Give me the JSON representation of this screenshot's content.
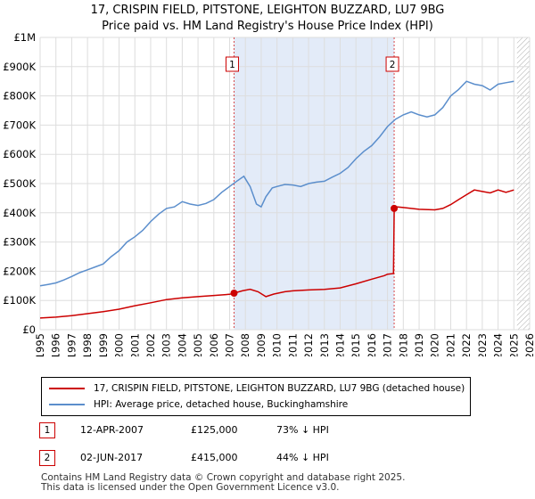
{
  "title_line1": "17, CRISPIN FIELD, PITSTONE, LEIGHTON BUZZARD, LU7 9BG",
  "title_line2": "Price paid vs. HM Land Registry's House Price Index (HPI)",
  "colors": {
    "property": "#cc0000",
    "hpi": "#5b8ecc",
    "shade": "#e3ebf8",
    "grid": "#dddddd",
    "hatch": "#aaaaaa"
  },
  "chart_data": {
    "type": "line",
    "title": "17, CRISPIN FIELD, PITSTONE, LEIGHTON BUZZARD, LU7 9BG",
    "subtitle": "Price paid vs. HM Land Registry's House Price Index (HPI)",
    "xlim": [
      1995,
      2026
    ],
    "ylim": [
      0,
      1000000
    ],
    "x_ticks": [
      "1995",
      "1996",
      "1997",
      "1998",
      "1999",
      "2000",
      "2001",
      "2002",
      "2003",
      "2004",
      "2005",
      "2006",
      "2007",
      "2008",
      "2009",
      "2010",
      "2011",
      "2012",
      "2013",
      "2014",
      "2015",
      "2016",
      "2017",
      "2018",
      "2019",
      "2020",
      "2021",
      "2022",
      "2023",
      "2024",
      "2025",
      "2026"
    ],
    "y_ticks": [
      {
        "value": 0,
        "label": "£0"
      },
      {
        "value": 100000,
        "label": "£100K"
      },
      {
        "value": 200000,
        "label": "£200K"
      },
      {
        "value": 300000,
        "label": "£300K"
      },
      {
        "value": 400000,
        "label": "£400K"
      },
      {
        "value": 500000,
        "label": "£500K"
      },
      {
        "value": 600000,
        "label": "£600K"
      },
      {
        "value": 700000,
        "label": "£700K"
      },
      {
        "value": 800000,
        "label": "£800K"
      },
      {
        "value": 900000,
        "label": "£900K"
      },
      {
        "value": 1000000,
        "label": "£1M"
      }
    ],
    "shaded_range": [
      2007.28,
      2017.42
    ],
    "future_hatch_from": 2025.2,
    "series": [
      {
        "name": "17, CRISPIN FIELD, PITSTONE, LEIGHTON BUZZARD, LU7 9BG (detached house)",
        "color": "#cc0000",
        "x": [
          1995.0,
          1996.0,
          1997.0,
          1998.0,
          1999.0,
          2000.0,
          2001.0,
          2002.0,
          2003.0,
          2004.0,
          2005.0,
          2006.0,
          2007.0,
          2007.28,
          2007.8,
          2008.3,
          2008.8,
          2009.3,
          2009.8,
          2010.5,
          2011.0,
          2012.0,
          2013.0,
          2014.0,
          2015.0,
          2016.0,
          2016.8,
          2017.0,
          2017.38,
          2017.42,
          2017.6,
          2018.0,
          2019.0,
          2020.0,
          2020.5,
          2021.0,
          2021.5,
          2022.0,
          2022.5,
          2023.0,
          2023.5,
          2024.0,
          2024.5,
          2025.0
        ],
        "y": [
          40000,
          43000,
          48000,
          55000,
          62000,
          70000,
          82000,
          92000,
          103000,
          109000,
          113000,
          117000,
          121000,
          125000,
          133000,
          138000,
          130000,
          113000,
          122000,
          130000,
          133000,
          136000,
          138000,
          143000,
          157000,
          173000,
          185000,
          190000,
          192000,
          415000,
          420000,
          418000,
          412000,
          410000,
          415000,
          428000,
          445000,
          462000,
          478000,
          473000,
          468000,
          478000,
          470000,
          478000
        ]
      },
      {
        "name": "HPI: Average price, detached house, Buckinghamshire",
        "color": "#5b8ecc",
        "x": [
          1995.0,
          1995.5,
          1996.0,
          1996.5,
          1997.0,
          1997.5,
          1998.0,
          1998.5,
          1999.0,
          1999.5,
          2000.0,
          2000.5,
          2001.0,
          2001.5,
          2002.0,
          2002.5,
          2003.0,
          2003.5,
          2004.0,
          2004.5,
          2005.0,
          2005.5,
          2006.0,
          2006.5,
          2007.0,
          2007.5,
          2007.9,
          2008.3,
          2008.7,
          2009.0,
          2009.3,
          2009.7,
          2010.0,
          2010.5,
          2011.0,
          2011.5,
          2012.0,
          2012.5,
          2013.0,
          2013.5,
          2014.0,
          2014.5,
          2015.0,
          2015.5,
          2016.0,
          2016.5,
          2017.0,
          2017.5,
          2018.0,
          2018.5,
          2019.0,
          2019.5,
          2020.0,
          2020.5,
          2021.0,
          2021.5,
          2022.0,
          2022.5,
          2023.0,
          2023.5,
          2024.0,
          2024.5,
          2025.0
        ],
        "y": [
          150000,
          155000,
          160000,
          170000,
          182000,
          195000,
          205000,
          215000,
          225000,
          250000,
          270000,
          300000,
          318000,
          340000,
          370000,
          395000,
          415000,
          420000,
          438000,
          430000,
          425000,
          432000,
          445000,
          470000,
          490000,
          510000,
          525000,
          490000,
          430000,
          420000,
          455000,
          485000,
          490000,
          497000,
          495000,
          490000,
          500000,
          505000,
          508000,
          522000,
          535000,
          555000,
          585000,
          610000,
          630000,
          660000,
          695000,
          720000,
          735000,
          745000,
          735000,
          728000,
          735000,
          760000,
          800000,
          822000,
          850000,
          840000,
          835000,
          820000,
          840000,
          845000,
          850000
        ]
      }
    ],
    "annotations": [
      {
        "label": "1",
        "x": 2007.28,
        "y": 125000
      },
      {
        "label": "2",
        "x": 2017.42,
        "y": 415000
      }
    ]
  },
  "legend": {
    "property_label": "17, CRISPIN FIELD, PITSTONE, LEIGHTON BUZZARD, LU7 9BG (detached house)",
    "hpi_label": "HPI: Average price, detached house, Buckinghamshire"
  },
  "sales": [
    {
      "num": "1",
      "date": "12-APR-2007",
      "price": "£125,000",
      "hpi_diff": "73% ↓ HPI"
    },
    {
      "num": "2",
      "date": "02-JUN-2017",
      "price": "£415,000",
      "hpi_diff": "44% ↓ HPI"
    }
  ],
  "footer": {
    "line1": "Contains HM Land Registry data © Crown copyright and database right 2025.",
    "line2": "This data is licensed under the Open Government Licence v3.0."
  }
}
